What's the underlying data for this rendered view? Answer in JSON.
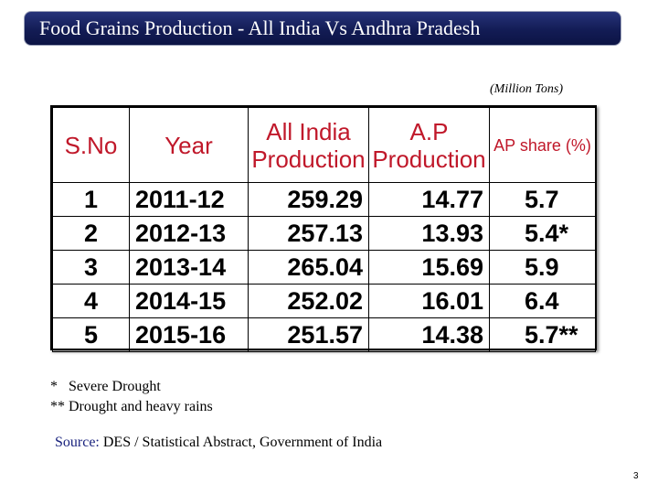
{
  "slide": {
    "title": "Food Grains Production - All India Vs Andhra Pradesh",
    "unit_note": "(Million Tons)"
  },
  "table": {
    "headers": {
      "sno": "S.No",
      "year": "Year",
      "all_india_line1": "All India",
      "all_india_line2": "Production",
      "ap_line1": "A.P",
      "ap_line2": "Production",
      "ap_share": "AP share (%)"
    },
    "rows": [
      {
        "sno": "1",
        "year": "2011-12",
        "all_india": "259.29",
        "ap": "14.77",
        "share": "5.7"
      },
      {
        "sno": "2",
        "year": "2012-13",
        "all_india": "257.13",
        "ap": "13.93",
        "share": "5.4*"
      },
      {
        "sno": "3",
        "year": "2013-14",
        "all_india": "265.04",
        "ap": "15.69",
        "share": "5.9"
      },
      {
        "sno": "4",
        "year": "2014-15",
        "all_india": "252.02",
        "ap": "16.01",
        "share": "6.4"
      },
      {
        "sno": "5",
        "year": "2015-16",
        "all_india": "251.57",
        "ap": "14.38",
        "share": "5.7**"
      }
    ]
  },
  "footnotes": {
    "note1": "*   Severe Drought",
    "note2": "** Drought and heavy rains"
  },
  "source": {
    "label": "Source:",
    "text": " DES / Statistical Abstract, Government of India"
  },
  "page_number": "3"
}
